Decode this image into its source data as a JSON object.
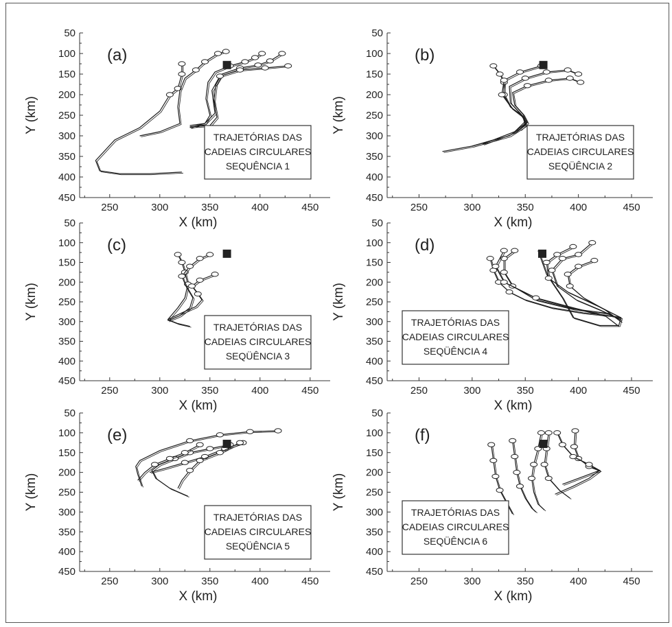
{
  "figure": {
    "border": true
  },
  "chart_data": [
    {
      "type": "line",
      "panel_label": "(a)",
      "xlabel": "X (km)",
      "ylabel": "Y (km)",
      "xlim": [
        220,
        470
      ],
      "ylim": [
        50,
        450
      ],
      "y_inverted": true,
      "xticks": [
        250,
        300,
        350,
        400,
        450
      ],
      "yticks": [
        50,
        100,
        150,
        200,
        250,
        300,
        350,
        400,
        450
      ],
      "legend_lines": [
        "TRAJETÓRIAS DAS",
        "CADEIAS CIRCULARES",
        "SEQUÊNCIA  1"
      ],
      "legend_position": "right",
      "marker": {
        "x": 367,
        "y": 128
      },
      "series": [
        {
          "x": [
            322,
            322,
            318,
            310,
            300,
            280,
            255,
            236,
            240,
            260,
            290,
            322
          ],
          "y": [
            125,
            150,
            185,
            200,
            240,
            280,
            310,
            360,
            385,
            392,
            392,
            388
          ]
        },
        {
          "x": [
            366,
            358,
            345,
            336,
            325,
            320,
            318,
            320,
            315,
            300,
            280
          ],
          "y": [
            95,
            100,
            120,
            140,
            160,
            190,
            230,
            270,
            275,
            290,
            300
          ]
        },
        {
          "x": [
            402,
            395,
            385,
            370,
            355,
            348,
            346,
            350,
            345,
            330
          ],
          "y": [
            100,
            110,
            120,
            130,
            145,
            170,
            210,
            250,
            270,
            275
          ]
        },
        {
          "x": [
            422,
            410,
            398,
            380,
            362,
            356,
            354,
            357,
            350,
            330
          ],
          "y": [
            100,
            118,
            128,
            135,
            150,
            175,
            215,
            255,
            275,
            278
          ]
        },
        {
          "x": [
            428,
            405,
            380,
            360,
            352,
            355,
            345,
            330
          ],
          "y": [
            130,
            135,
            140,
            155,
            190,
            245,
            270,
            280
          ]
        }
      ]
    },
    {
      "type": "line",
      "panel_label": "(b)",
      "xlabel": "X (km)",
      "ylabel": "Y (km)",
      "xlim": [
        220,
        470
      ],
      "ylim": [
        50,
        450
      ],
      "y_inverted": true,
      "xticks": [
        250,
        300,
        350,
        400,
        450
      ],
      "yticks": [
        50,
        100,
        150,
        200,
        250,
        300,
        350,
        400,
        450
      ],
      "legend_lines": [
        "TRAJETÓRIAS DAS",
        "CADEIAS CIRCULARES",
        "SEQÜÊNCIA  2"
      ],
      "legend_position": "right",
      "marker": {
        "x": 367,
        "y": 128
      },
      "series": [
        {
          "x": [
            320,
            326,
            330,
            330,
            336,
            347,
            350,
            340,
            320,
            300,
            272
          ],
          "y": [
            130,
            150,
            170,
            200,
            230,
            250,
            270,
            290,
            310,
            325,
            338
          ]
        },
        {
          "x": [
            365,
            345,
            330,
            328,
            338,
            348,
            350,
            335,
            300
          ],
          "y": [
            130,
            145,
            165,
            200,
            235,
            255,
            275,
            300,
            325
          ]
        },
        {
          "x": [
            400,
            390,
            370,
            350,
            335,
            336,
            345,
            350,
            340,
            310
          ],
          "y": [
            150,
            140,
            145,
            160,
            180,
            220,
            245,
            265,
            290,
            320
          ]
        },
        {
          "x": [
            402,
            392,
            372,
            352,
            338,
            340,
            348,
            352,
            345
          ],
          "y": [
            170,
            160,
            165,
            178,
            195,
            225,
            248,
            268,
            285
          ]
        }
      ]
    },
    {
      "type": "line",
      "panel_label": "(c)",
      "xlabel": "X (km)",
      "ylabel": "Y (km)",
      "xlim": [
        220,
        470
      ],
      "ylim": [
        50,
        450
      ],
      "y_inverted": true,
      "xticks": [
        250,
        300,
        350,
        400,
        450
      ],
      "yticks": [
        50,
        100,
        150,
        200,
        250,
        300,
        350,
        400,
        450
      ],
      "legend_lines": [
        "TRAJETÓRIAS DAS",
        "CADEIAS CIRCULARES",
        "SEQÜÊNCIA  3"
      ],
      "legend_position": "right",
      "marker": {
        "x": 367,
        "y": 128
      },
      "series": [
        {
          "x": [
            318,
            322,
            325,
            328,
            325,
            318,
            308,
            318,
            330
          ],
          "y": [
            130,
            150,
            175,
            205,
            240,
            265,
            295,
            305,
            312
          ]
        },
        {
          "x": [
            350,
            340,
            330,
            322,
            326,
            333,
            330,
            320,
            308
          ],
          "y": [
            130,
            140,
            160,
            185,
            210,
            240,
            265,
            285,
            298
          ]
        },
        {
          "x": [
            355,
            340,
            332,
            338,
            342,
            336,
            322,
            308
          ],
          "y": [
            180,
            195,
            210,
            230,
            245,
            262,
            278,
            295
          ]
        }
      ]
    },
    {
      "type": "line",
      "panel_label": "(d)",
      "xlabel": "X (km)",
      "ylabel": "Y (km)",
      "xlim": [
        220,
        470
      ],
      "ylim": [
        50,
        450
      ],
      "y_inverted": true,
      "xticks": [
        250,
        300,
        350,
        400,
        450
      ],
      "yticks": [
        50,
        100,
        150,
        200,
        250,
        300,
        350,
        400,
        450
      ],
      "legend_lines": [
        "TRAJETÓRIAS DAS",
        "CADEIAS CIRCULARES",
        "SEQÜÊNCIA 4"
      ],
      "legend_position": "left",
      "marker": {
        "x": 366,
        "y": 128
      },
      "series": [
        {
          "x": [
            317,
            320,
            325,
            335,
            350,
            375,
            405,
            430,
            440,
            438,
            420,
            395,
            385,
            370,
            362
          ],
          "y": [
            140,
            170,
            200,
            225,
            245,
            265,
            278,
            285,
            290,
            310,
            310,
            290,
            240,
            180,
            120
          ]
        },
        {
          "x": [
            340,
            330,
            330,
            338,
            360,
            395,
            430,
            440
          ],
          "y": [
            120,
            140,
            175,
            210,
            245,
            268,
            280,
            300
          ]
        },
        {
          "x": [
            413,
            400,
            385,
            375,
            380,
            398,
            420,
            440
          ],
          "y": [
            100,
            130,
            140,
            170,
            210,
            245,
            270,
            295
          ]
        },
        {
          "x": [
            415,
            400,
            390,
            392,
            405,
            425,
            440
          ],
          "y": [
            145,
            160,
            180,
            210,
            240,
            270,
            300
          ]
        },
        {
          "x": [
            395,
            380,
            370,
            372,
            390,
            418,
            440
          ],
          "y": [
            110,
            130,
            150,
            190,
            225,
            260,
            290
          ]
        },
        {
          "x": [
            330,
            322,
            330,
            360,
            395,
            425,
            437
          ],
          "y": [
            120,
            160,
            200,
            240,
            265,
            285,
            310
          ]
        }
      ]
    },
    {
      "type": "line",
      "panel_label": "(e)",
      "xlabel": "X (km)",
      "ylabel": "Y (km)",
      "xlim": [
        220,
        470
      ],
      "ylim": [
        50,
        450
      ],
      "y_inverted": true,
      "xticks": [
        250,
        300,
        350,
        400,
        450
      ],
      "yticks": [
        50,
        100,
        150,
        200,
        250,
        300,
        350,
        400,
        450
      ],
      "legend_lines": [
        "TRAJETÓRIAS DAS",
        "CADEIAS CIRCULARES",
        "SEQÜÊNCIA 5"
      ],
      "legend_position": "right",
      "marker": {
        "x": 367,
        "y": 128
      },
      "series": [
        {
          "x": [
            418,
            390,
            360,
            330,
            300,
            280,
            276,
            278,
            282
          ],
          "y": [
            95,
            97,
            105,
            120,
            145,
            170,
            185,
            205,
            235
          ]
        },
        {
          "x": [
            383,
            365,
            345,
            325,
            305,
            290
          ],
          "y": [
            125,
            140,
            160,
            175,
            190,
            200
          ]
        },
        {
          "x": [
            370,
            350,
            330,
            315,
            300,
            292,
            296,
            310,
            328
          ],
          "y": [
            130,
            140,
            150,
            165,
            180,
            195,
            215,
            240,
            260
          ]
        },
        {
          "x": [
            380,
            360,
            340,
            330,
            322,
            318
          ],
          "y": [
            125,
            150,
            170,
            195,
            220,
            240
          ]
        },
        {
          "x": [
            340,
            325,
            310,
            295,
            285,
            278
          ],
          "y": [
            130,
            150,
            165,
            180,
            200,
            220
          ]
        }
      ]
    },
    {
      "type": "line",
      "panel_label": "(f)",
      "xlabel": "X (km)",
      "ylabel": "Y (km)",
      "xlim": [
        220,
        470
      ],
      "ylim": [
        50,
        450
      ],
      "y_inverted": true,
      "xticks": [
        250,
        300,
        350,
        400,
        450
      ],
      "yticks": [
        50,
        100,
        150,
        200,
        250,
        300,
        350,
        400,
        450
      ],
      "legend_lines": [
        "TRAJETÓRIAS DAS",
        "CADEIAS CIRCULARES",
        "SEQÜÊNCIA 6"
      ],
      "legend_position": "left",
      "marker": {
        "x": 367,
        "y": 128
      },
      "series": [
        {
          "x": [
            318,
            320,
            322,
            326,
            332,
            336,
            338
          ],
          "y": [
            130,
            170,
            210,
            245,
            275,
            295,
            305
          ]
        },
        {
          "x": [
            338,
            340,
            342,
            345,
            350,
            356,
            360
          ],
          "y": [
            120,
            160,
            200,
            235,
            265,
            290,
            300
          ]
        },
        {
          "x": [
            365,
            362,
            358,
            356,
            358,
            362,
            368
          ],
          "y": [
            100,
            140,
            180,
            215,
            250,
            280,
            295
          ]
        },
        {
          "x": [
            372,
            370,
            368,
            372,
            382,
            392
          ],
          "y": [
            100,
            140,
            180,
            215,
            245,
            265
          ]
        },
        {
          "x": [
            397,
            396,
            400,
            410,
            420,
            405,
            385
          ],
          "y": [
            95,
            135,
            165,
            185,
            195,
            210,
            230
          ]
        },
        {
          "x": [
            380,
            385,
            395,
            410,
            420,
            410,
            395,
            378
          ],
          "y": [
            100,
            130,
            160,
            180,
            195,
            215,
            235,
            255
          ]
        }
      ]
    }
  ]
}
